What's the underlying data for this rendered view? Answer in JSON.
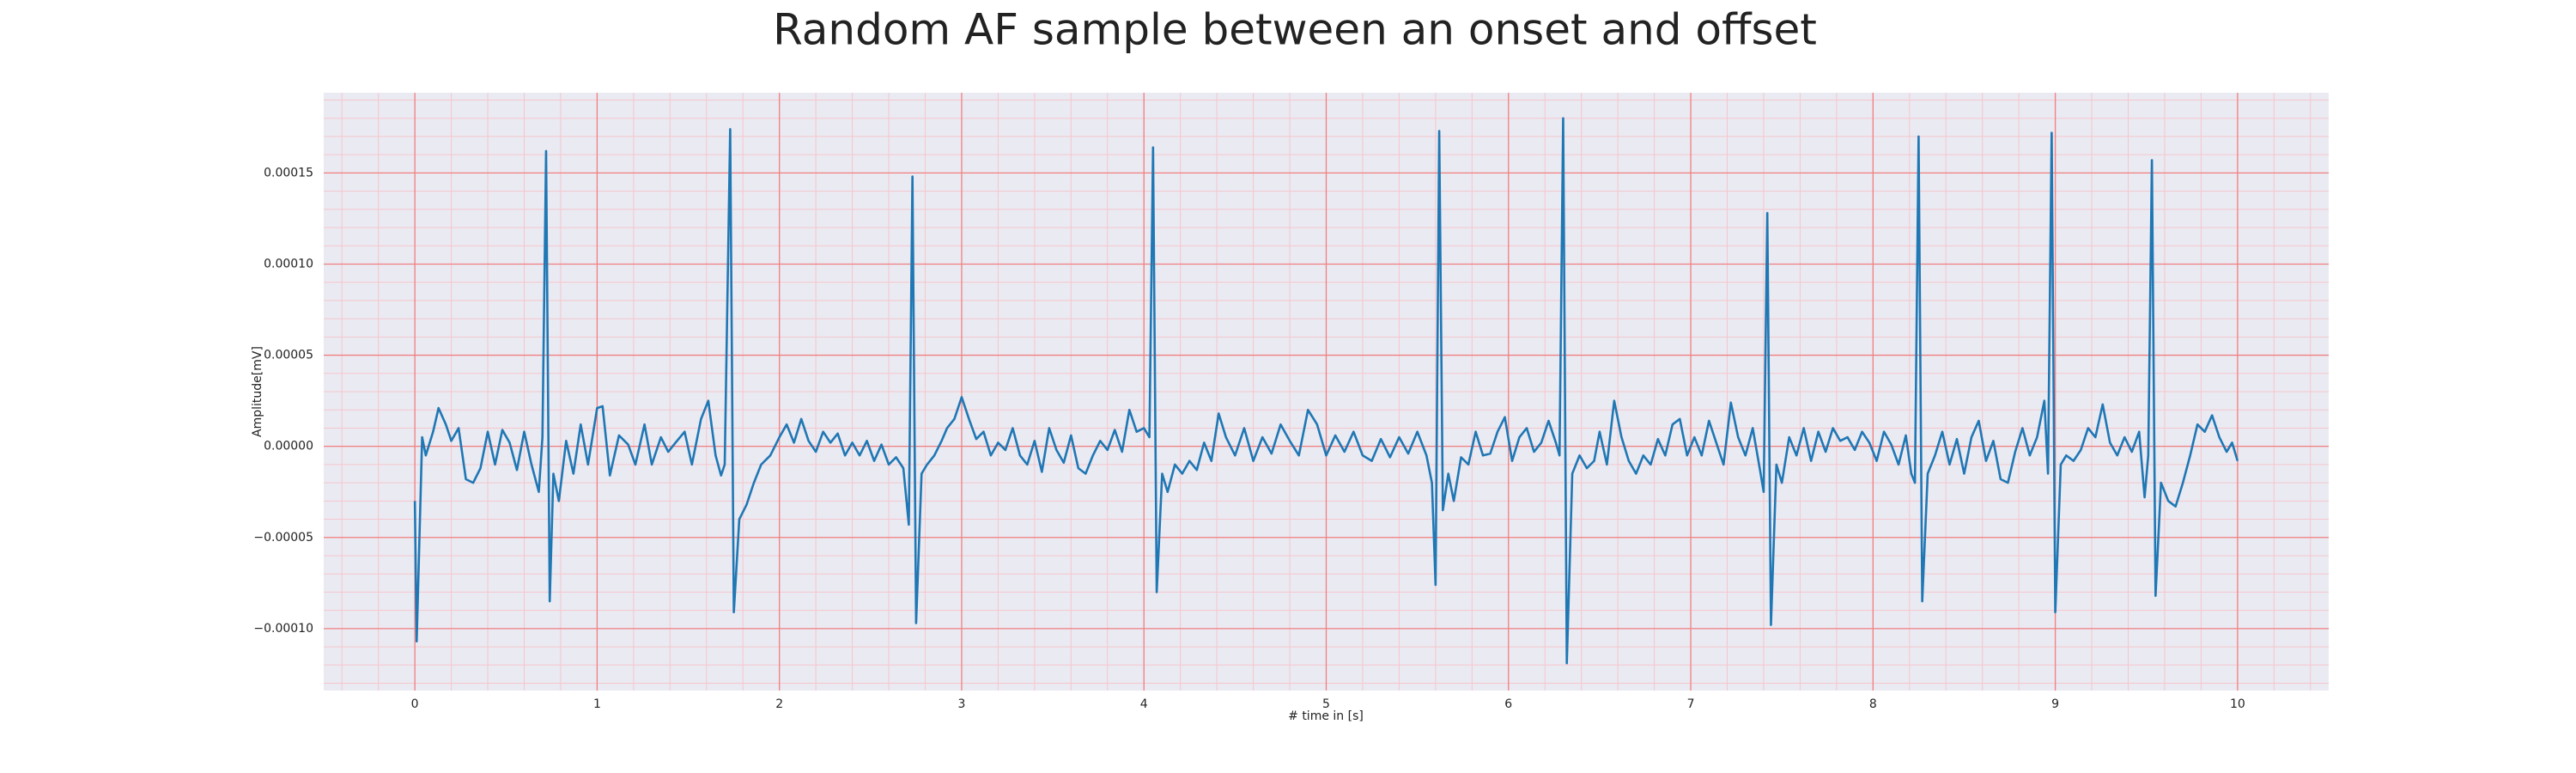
{
  "chart_data": {
    "type": "line",
    "title": "Random AF sample between an onset and offset",
    "xlabel": "# time in [s]",
    "ylabel": "Amplitude[mV]",
    "xlim": [
      -0.5,
      10.5
    ],
    "ylim": [
      -0.000134,
      0.000194
    ],
    "xticks": [
      0,
      1,
      2,
      3,
      4,
      5,
      6,
      7,
      8,
      9,
      10
    ],
    "yticks": [
      {
        "value": -0.0001,
        "label": "−0.00010"
      },
      {
        "value": -5e-05,
        "label": "−0.00005"
      },
      {
        "value": 0,
        "label": "0.00000"
      },
      {
        "value": 5e-05,
        "label": "0.00005"
      },
      {
        "value": 0.0001,
        "label": "0.00010"
      },
      {
        "value": 0.00015,
        "label": "0.00015"
      }
    ],
    "grid": true,
    "grid_color": "#f08080",
    "minor_grid_color": "#f6c6cc",
    "minor_grid_step": {
      "x": 0.2,
      "y": 1e-05
    },
    "background": "#eaeaf2",
    "series": [
      {
        "color": "#1f77b4",
        "x": [
          0,
          0.01,
          0.04,
          0.06,
          0.1,
          0.13,
          0.17,
          0.2,
          0.24,
          0.28,
          0.32,
          0.36,
          0.4,
          0.44,
          0.48,
          0.52,
          0.56,
          0.6,
          0.64,
          0.68,
          0.7,
          0.72,
          0.74,
          0.76,
          0.79,
          0.83,
          0.87,
          0.91,
          0.95,
          1.0,
          1.03,
          1.07,
          1.12,
          1.17,
          1.21,
          1.26,
          1.3,
          1.35,
          1.39,
          1.43,
          1.48,
          1.52,
          1.57,
          1.61,
          1.65,
          1.68,
          1.7,
          1.73,
          1.75,
          1.78,
          1.82,
          1.86,
          1.9,
          1.95,
          2.0,
          2.04,
          2.08,
          2.12,
          2.16,
          2.2,
          2.24,
          2.28,
          2.32,
          2.36,
          2.4,
          2.44,
          2.48,
          2.52,
          2.56,
          2.6,
          2.64,
          2.68,
          2.71,
          2.73,
          2.75,
          2.78,
          2.81,
          2.85,
          2.89,
          2.92,
          2.96,
          3.0,
          3.04,
          3.08,
          3.12,
          3.16,
          3.2,
          3.24,
          3.28,
          3.32,
          3.36,
          3.4,
          3.44,
          3.48,
          3.52,
          3.56,
          3.6,
          3.64,
          3.68,
          3.72,
          3.76,
          3.8,
          3.84,
          3.88,
          3.92,
          3.96,
          4.0,
          4.03,
          4.05,
          4.07,
          4.1,
          4.13,
          4.17,
          4.21,
          4.25,
          4.29,
          4.33,
          4.37,
          4.41,
          4.45,
          4.5,
          4.55,
          4.6,
          4.65,
          4.7,
          4.75,
          4.8,
          4.85,
          4.9,
          4.95,
          5.0,
          5.05,
          5.1,
          5.15,
          5.2,
          5.25,
          5.3,
          5.35,
          5.4,
          5.45,
          5.5,
          5.55,
          5.58,
          5.6,
          5.62,
          5.64,
          5.67,
          5.7,
          5.74,
          5.78,
          5.82,
          5.86,
          5.9,
          5.94,
          5.98,
          6.02,
          6.06,
          6.1,
          6.14,
          6.18,
          6.22,
          6.26,
          6.28,
          6.3,
          6.32,
          6.35,
          6.39,
          6.43,
          6.47,
          6.5,
          6.54,
          6.58,
          6.62,
          6.66,
          6.7,
          6.74,
          6.78,
          6.82,
          6.86,
          6.9,
          6.94,
          6.98,
          7.02,
          7.06,
          7.1,
          7.14,
          7.18,
          7.22,
          7.26,
          7.3,
          7.34,
          7.38,
          7.4,
          7.42,
          7.44,
          7.47,
          7.5,
          7.54,
          7.58,
          7.62,
          7.66,
          7.7,
          7.74,
          7.78,
          7.82,
          7.86,
          7.9,
          7.94,
          7.98,
          8.02,
          8.06,
          8.1,
          8.14,
          8.18,
          8.21,
          8.23,
          8.25,
          8.27,
          8.3,
          8.34,
          8.38,
          8.42,
          8.46,
          8.5,
          8.54,
          8.58,
          8.62,
          8.66,
          8.7,
          8.74,
          8.78,
          8.82,
          8.86,
          8.9,
          8.94,
          8.96,
          8.98,
          9.0,
          9.03,
          9.06,
          9.1,
          9.14,
          9.18,
          9.22,
          9.26,
          9.3,
          9.34,
          9.38,
          9.42,
          9.46,
          9.49,
          9.51,
          9.53,
          9.55,
          9.58,
          9.62,
          9.66,
          9.7,
          9.74,
          9.78,
          9.82,
          9.86,
          9.9,
          9.94,
          9.97,
          10.0
        ],
        "values": [
          -3e-05,
          -0.000107,
          5e-06,
          -5e-06,
          8e-06,
          2.1e-05,
          1.2e-05,
          3e-06,
          1e-05,
          -1.8e-05,
          -2e-05,
          -1.2e-05,
          8e-06,
          -1e-05,
          9e-06,
          2e-06,
          -1.3e-05,
          8e-06,
          -1e-05,
          -2.5e-05,
          5e-06,
          0.000162,
          -8.5e-05,
          -1.5e-05,
          -3e-05,
          3e-06,
          -1.5e-05,
          1.2e-05,
          -1e-05,
          2.1e-05,
          2.2e-05,
          -1.6e-05,
          6e-06,
          1e-06,
          -1e-05,
          1.2e-05,
          -1e-05,
          5e-06,
          -3e-06,
          2e-06,
          8e-06,
          -1e-05,
          1.5e-05,
          2.5e-05,
          -5e-06,
          -1.6e-05,
          -1e-05,
          0.000174,
          -9.1e-05,
          -4e-05,
          -3.2e-05,
          -2e-05,
          -1e-05,
          -5e-06,
          5e-06,
          1.2e-05,
          2e-06,
          1.5e-05,
          3e-06,
          -3e-06,
          8e-06,
          2e-06,
          7e-06,
          -5e-06,
          2e-06,
          -5e-06,
          3e-06,
          -8e-06,
          1e-06,
          -1e-05,
          -6e-06,
          -1.2e-05,
          -4.3e-05,
          0.000148,
          -9.7e-05,
          -1.5e-05,
          -1e-05,
          -5e-06,
          3e-06,
          1e-05,
          1.5e-05,
          2.7e-05,
          1.5e-05,
          4e-06,
          8e-06,
          -5e-06,
          2e-06,
          -2e-06,
          1e-05,
          -5e-06,
          -1e-05,
          3e-06,
          -1.4e-05,
          1e-05,
          -2e-06,
          -9e-06,
          6e-06,
          -1.2e-05,
          -1.5e-05,
          -5e-06,
          3e-06,
          -2e-06,
          9e-06,
          -3e-06,
          2e-05,
          8e-06,
          1e-05,
          5e-06,
          0.000164,
          -8e-05,
          -1.5e-05,
          -2.5e-05,
          -1e-05,
          -1.5e-05,
          -8e-06,
          -1.3e-05,
          2e-06,
          -8e-06,
          1.8e-05,
          5e-06,
          -5e-06,
          1e-05,
          -8e-06,
          5e-06,
          -4e-06,
          1.2e-05,
          3e-06,
          -5e-06,
          2e-05,
          1.2e-05,
          -5e-06,
          6e-06,
          -3e-06,
          8e-06,
          -5e-06,
          -8e-06,
          4e-06,
          -6e-06,
          5e-06,
          -4e-06,
          8e-06,
          -5e-06,
          -2e-05,
          -7.6e-05,
          0.000173,
          -3.5e-05,
          -1.5e-05,
          -3e-05,
          -6e-06,
          -1e-05,
          8e-06,
          -5e-06,
          -4e-06,
          8e-06,
          1.6e-05,
          -8e-06,
          5e-06,
          1e-05,
          -3e-06,
          2e-06,
          1.4e-05,
          2e-06,
          -5e-06,
          0.00018,
          -0.000119,
          -1.5e-05,
          -5e-06,
          -1.2e-05,
          -8e-06,
          8e-06,
          -1e-05,
          2.5e-05,
          5e-06,
          -8e-06,
          -1.5e-05,
          -5e-06,
          -1e-05,
          4e-06,
          -5e-06,
          1.2e-05,
          1.5e-05,
          -5e-06,
          5e-06,
          -5e-06,
          1.4e-05,
          2e-06,
          -1e-05,
          2.4e-05,
          5e-06,
          -5e-06,
          1e-05,
          -1.3e-05,
          -2.5e-05,
          0.000128,
          -9.8e-05,
          -1e-05,
          -2e-05,
          5e-06,
          -5e-06,
          1e-05,
          -8e-06,
          8e-06,
          -3e-06,
          1e-05,
          3e-06,
          5e-06,
          -2e-06,
          8e-06,
          2e-06,
          -8e-06,
          8e-06,
          1e-06,
          -1e-05,
          6e-06,
          -1.5e-05,
          -2e-05,
          0.00017,
          -8.5e-05,
          -1.5e-05,
          -5e-06,
          8e-06,
          -1e-05,
          4e-06,
          -1.5e-05,
          5e-06,
          1.4e-05,
          -8e-06,
          3e-06,
          -1.8e-05,
          -2e-05,
          -3e-06,
          1e-05,
          -5e-06,
          5e-06,
          2.5e-05,
          -1.5e-05,
          0.000172,
          -9.1e-05,
          -1e-05,
          -5e-06,
          -8e-06,
          -2e-06,
          1e-05,
          5e-06,
          2.3e-05,
          2e-06,
          -5e-06,
          5e-06,
          -3e-06,
          8e-06,
          -2.8e-05,
          -5e-06,
          0.000157,
          -8.2e-05,
          -2e-05,
          -3e-05,
          -3.3e-05,
          -2e-05,
          -5e-06,
          1.2e-05,
          8e-06,
          1.7e-05,
          5e-06,
          -3e-06,
          2e-06,
          -8e-06
        ]
      }
    ]
  }
}
